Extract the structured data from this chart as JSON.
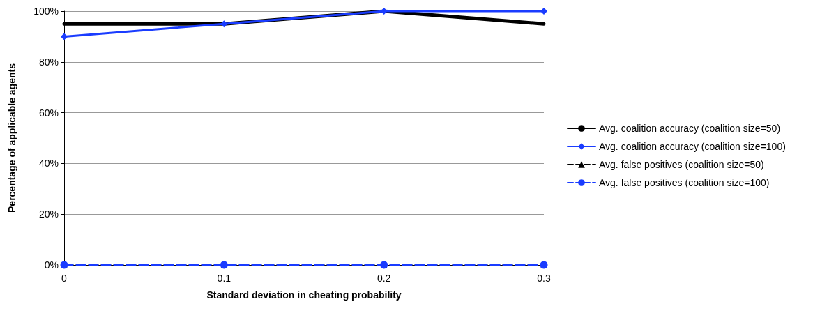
{
  "chart_data": {
    "type": "line",
    "xlabel": "Standard deviation in cheating probability",
    "ylabel": "Percentage of applicable agents",
    "x": [
      0,
      0.1,
      0.2,
      0.3
    ],
    "xlim": [
      0,
      0.3
    ],
    "xticks": [
      0,
      0.1,
      0.2,
      0.3
    ],
    "ylim": [
      0,
      100
    ],
    "yticks": [
      {
        "value": 0,
        "label": "0%"
      },
      {
        "value": 20,
        "label": "20%"
      },
      {
        "value": 40,
        "label": "40%"
      },
      {
        "value": 60,
        "label": "60%"
      },
      {
        "value": 80,
        "label": "80%"
      },
      {
        "value": 100,
        "label": "100%"
      }
    ],
    "grid": "y",
    "legend": "right",
    "series": [
      {
        "name": "Avg. coalition accuracy (coalition size=50)",
        "color": "#000000",
        "values": [
          95,
          95,
          100,
          95
        ],
        "marker": "none",
        "line_style": "solid"
      },
      {
        "name": "Avg. coalition accuracy (coalition size=100)",
        "color": "#1a3cff",
        "values": [
          90,
          95,
          100,
          100
        ],
        "marker": "diamond",
        "line_style": "solid"
      },
      {
        "name": "Avg. false positives (coalition size=50)",
        "color": "#000000",
        "values": [
          0,
          0,
          0,
          0
        ],
        "marker": "triangle",
        "line_style": "dashed"
      },
      {
        "name": "Avg. false positives (coalition size=100)",
        "color": "#1a3cff",
        "values": [
          0,
          0,
          0,
          0
        ],
        "marker": "circle",
        "line_style": "dashed"
      }
    ]
  }
}
